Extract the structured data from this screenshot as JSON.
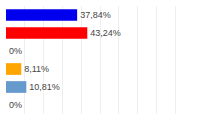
{
  "chart_data": {
    "type": "bar",
    "orientation": "horizontal",
    "categories": [
      null,
      null,
      null,
      null,
      null,
      null
    ],
    "values": [
      37.84,
      43.24,
      0.0,
      8.11,
      10.81,
      0.0
    ],
    "value_labels": [
      "37,84%",
      "43,24%",
      "0%",
      "8,11%",
      "10,81%",
      "0%"
    ],
    "colors": [
      "#0000ee",
      "#ff0000",
      "#cccccc",
      "#ffa500",
      "#6699cc",
      "#cccccc"
    ],
    "data_labels": true,
    "xlim": [
      0,
      100
    ],
    "xticks": [
      0,
      10,
      20,
      30,
      40,
      50,
      60,
      70,
      80,
      90,
      100
    ],
    "grid": true,
    "tick_labels": false
  }
}
